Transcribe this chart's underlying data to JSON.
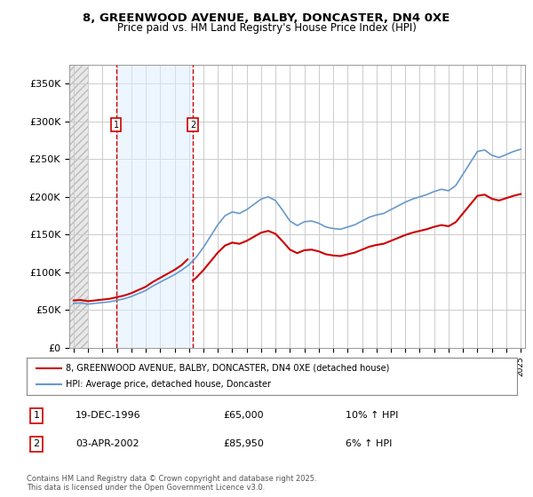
{
  "title_line1": "8, GREENWOOD AVENUE, BALBY, DONCASTER, DN4 0XE",
  "title_line2": "Price paid vs. HM Land Registry's House Price Index (HPI)",
  "ylabel": "",
  "background_color": "#ffffff",
  "plot_bg_color": "#ffffff",
  "hatch_color": "#cccccc",
  "grid_color": "#cccccc",
  "sale1_date": "19-DEC-1996",
  "sale1_price": 65000,
  "sale1_hpi": "10% ↑ HPI",
  "sale2_date": "03-APR-2002",
  "sale2_price": 85950,
  "sale2_hpi": "6% ↑ HPI",
  "legend_label1": "8, GREENWOOD AVENUE, BALBY, DONCASTER, DN4 0XE (detached house)",
  "legend_label2": "HPI: Average price, detached house, Doncaster",
  "footnote": "Contains HM Land Registry data © Crown copyright and database right 2025.\nThis data is licensed under the Open Government Licence v3.0.",
  "red_line_color": "#cc0000",
  "blue_line_color": "#6699cc",
  "ylim_min": 0,
  "ylim_max": 375000,
  "xstart": 1994,
  "xend": 2025,
  "sale1_x": 1996.96,
  "sale2_x": 2002.26
}
